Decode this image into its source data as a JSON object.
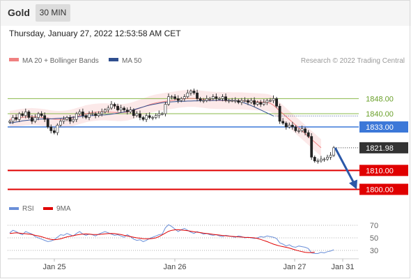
{
  "header": {
    "symbol": "Gold",
    "timeframe": "30 MIN"
  },
  "timestamp": "Thursday, January 27, 2022 12:53:58 AM CET",
  "legend": [
    {
      "label": "MA 20 + Bollinger Bands",
      "color": "#f08080"
    },
    {
      "label": "MA 50",
      "color": "#2f4f8f"
    }
  ],
  "copyright": "Research © 2022 Trading Central",
  "rsi_legend": [
    {
      "label": "RSI",
      "color": "#6a8fd8"
    },
    {
      "label": "9MA",
      "color": "#e00000"
    }
  ],
  "chart_data": {
    "type": "candlestick",
    "x_tick_labels": [
      "Jan 25",
      "Jan 26",
      "Jan 27",
      "Jan 31"
    ],
    "ylim": [
      1795,
      1864
    ],
    "price_levels": [
      {
        "value": 1848.0,
        "label": "1848.00",
        "kind": "resistance",
        "color": "#8ab84a"
      },
      {
        "value": 1840.0,
        "label": "1840.00",
        "kind": "resistance",
        "color": "#8ab84a"
      },
      {
        "value": 1833.0,
        "label": "1833.00",
        "kind": "pivot",
        "color": "#3c78d8"
      },
      {
        "value": 1821.98,
        "label": "1821.98",
        "kind": "last",
        "color": "#333333"
      },
      {
        "value": 1810.0,
        "label": "1810.00",
        "kind": "support",
        "color": "#e00000"
      },
      {
        "value": 1800.0,
        "label": "1800.00",
        "kind": "support",
        "color": "#e00000"
      }
    ],
    "close": [
      1836,
      1838,
      1837,
      1840,
      1839,
      1841,
      1838,
      1836,
      1838,
      1840,
      1839,
      1837,
      1833,
      1831,
      1830,
      1834,
      1836,
      1837,
      1838,
      1836,
      1837,
      1840,
      1841,
      1839,
      1838,
      1840,
      1840,
      1839,
      1840,
      1841,
      1842,
      1843,
      1845,
      1844,
      1842,
      1843,
      1842,
      1841,
      1842,
      1839,
      1840,
      1838,
      1837,
      1839,
      1838,
      1838,
      1839,
      1840,
      1840,
      1845,
      1849,
      1849,
      1848,
      1847,
      1848,
      1849,
      1851,
      1852,
      1851,
      1848,
      1847,
      1847,
      1848,
      1848,
      1849,
      1848,
      1848,
      1849,
      1847,
      1847,
      1847,
      1847,
      1846,
      1847,
      1847,
      1846,
      1847,
      1845,
      1846,
      1845,
      1846,
      1847,
      1847,
      1848,
      1844,
      1836,
      1835,
      1833,
      1834,
      1833,
      1831,
      1831,
      1832,
      1830,
      1828,
      1817,
      1815,
      1815,
      1816,
      1816,
      1817,
      1818,
      1822
    ],
    "ma20": [
      1837,
      1837.3,
      1837.6,
      1837.9,
      1838.1,
      1838.3,
      1838.4,
      1838.5,
      1838.4,
      1838.3,
      1838.1,
      1837.9,
      1837.6,
      1837.3,
      1837.1,
      1837,
      1837,
      1837.1,
      1837.3,
      1837.6,
      1838,
      1838.5,
      1839,
      1839.5,
      1840,
      1840.3,
      1840.6,
      1840.8,
      1840.9,
      1841,
      1841,
      1840.9,
      1840.8,
      1840.7,
      1840.6,
      1840.6,
      1840.7,
      1840.9,
      1841.3,
      1841.8,
      1842.4,
      1843,
      1843.6,
      1844.2,
      1844.8,
      1845.3,
      1845.7,
      1846,
      1846.3,
      1846.6,
      1846.8,
      1847,
      1847.3,
      1847.6,
      1847.8,
      1848,
      1848.1,
      1848.1,
      1848.1,
      1848,
      1847.8,
      1847.6,
      1847.4,
      1847.2,
      1847.1,
      1847,
      1847,
      1846.9,
      1846.9,
      1846.9,
      1846.8,
      1846.8,
      1846.8,
      1846.8,
      1846.7,
      1846.6,
      1846.5,
      1846.4,
      1846.3,
      1846.2,
      1846.1,
      1846,
      1845.5,
      1844.5,
      1843,
      1841.5,
      1840,
      1838.5,
      1837,
      1835.5,
      1834,
      1832.5,
      1831,
      1829.5,
      1828,
      1826.5,
      1825,
      1823.5,
      1822
    ],
    "ma50": [
      1835,
      1835.3,
      1835.6,
      1835.9,
      1836.2,
      1836.4,
      1836.6,
      1836.8,
      1837,
      1837.1,
      1837.2,
      1837.3,
      1837.3,
      1837.3,
      1837.4,
      1837.5,
      1837.6,
      1837.7,
      1837.9,
      1838,
      1838.2,
      1838.3,
      1838.5,
      1838.7,
      1838.8,
      1838.9,
      1839,
      1839.1,
      1839.2,
      1839.3,
      1839.4,
      1839.6,
      1839.8,
      1840,
      1840.3,
      1840.6,
      1840.9,
      1841.3,
      1841.7,
      1842.1,
      1842.6,
      1843.1,
      1843.6,
      1844.1,
      1844.5,
      1844.9,
      1845.2,
      1845.5,
      1845.8,
      1846,
      1846.2,
      1846.3,
      1846.4,
      1846.5,
      1846.6,
      1846.6,
      1846.7,
      1846.7,
      1846.8,
      1846.8,
      1846.9,
      1846.9,
      1847,
      1847,
      1847,
      1847.1,
      1847.1,
      1847.1,
      1847.1,
      1847.1,
      1847,
      1846.9,
      1846.6,
      1846.2,
      1845.6,
      1845,
      1844.3,
      1843.6,
      1842.8,
      1842,
      1841.2,
      1840.4,
      1839.6,
      1838.8
    ],
    "rsi": {
      "ylim": [
        20,
        80
      ],
      "levels": [
        70,
        50,
        30
      ],
      "rsi": [
        58,
        62,
        60,
        57,
        55,
        60,
        58,
        56,
        52,
        50,
        48,
        46,
        44,
        45,
        47,
        51,
        55,
        54,
        57,
        55,
        53,
        57,
        60,
        56,
        54,
        56,
        55,
        53,
        56,
        58,
        60,
        58,
        56,
        54,
        55,
        53,
        51,
        55,
        52,
        48,
        46,
        47,
        44,
        46,
        49,
        51,
        53,
        55,
        56,
        66,
        71,
        68,
        64,
        60,
        63,
        65,
        62,
        59,
        57,
        60,
        58,
        56,
        57,
        55,
        54,
        55,
        53,
        52,
        54,
        53,
        52,
        51,
        53,
        52,
        50,
        51,
        50,
        49,
        50,
        52,
        51,
        53,
        52,
        51,
        49,
        42,
        40,
        37,
        39,
        36,
        35,
        37,
        36,
        35,
        33,
        26,
        25,
        25,
        27,
        26,
        28,
        29,
        31
      ],
      "ma9": [
        57,
        57.5,
        58,
        57.6,
        57,
        56.5,
        56,
        55.2,
        54,
        53,
        51.8,
        50.2,
        48.6,
        47.4,
        47,
        47.4,
        48.5,
        50,
        51.5,
        52.5,
        53.5,
        54.5,
        55.4,
        56,
        56.2,
        56,
        55.5,
        55.2,
        55.4,
        55.8,
        56.4,
        56.8,
        57,
        56.8,
        56,
        55.2,
        54,
        53,
        52,
        51,
        50,
        49.4,
        48.7,
        48.4,
        48.5,
        49,
        50,
        52,
        54.8,
        57.6,
        60.4,
        62,
        62.8,
        63,
        62.6,
        62,
        61.4,
        60.6,
        59.7,
        59,
        58.3,
        57.6,
        57,
        56.3,
        55.6,
        55,
        54.4,
        53.8,
        53.3,
        52.8,
        52.3,
        52,
        51.6,
        51.2,
        50.8,
        50.6,
        50.4,
        50,
        49,
        47.5,
        45.8,
        44,
        42,
        40,
        38.4,
        37,
        36,
        35,
        33.8,
        32.2,
        30.6,
        29.2,
        28,
        27,
        26.6,
        26.6,
        27.2
      ]
    }
  }
}
